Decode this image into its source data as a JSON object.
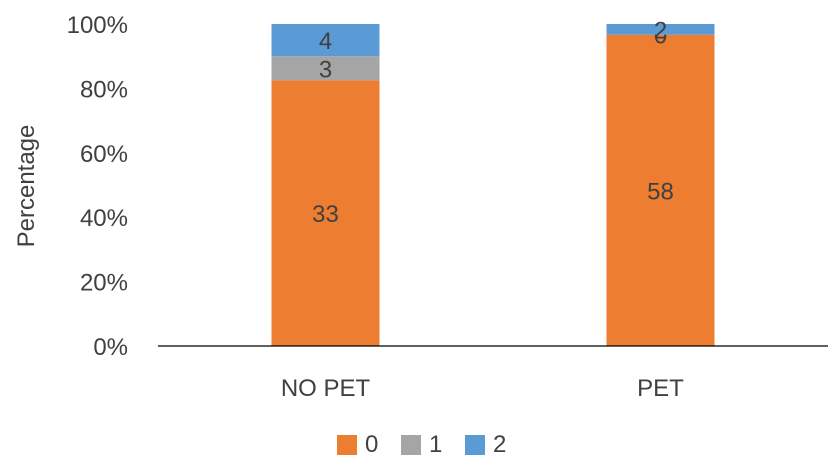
{
  "chart_data": {
    "type": "bar",
    "stacked": true,
    "percent": true,
    "categories": [
      "NO PET",
      "PET"
    ],
    "series": [
      {
        "name": "0",
        "values": [
          33,
          58
        ],
        "color": "#ED7D31"
      },
      {
        "name": "1",
        "values": [
          3,
          0
        ],
        "color": "#A5A5A5"
      },
      {
        "name": "2",
        "values": [
          4,
          2
        ],
        "color": "#5B9BD5"
      }
    ],
    "ylabel": "Percentage",
    "xlabel": "",
    "ylim": [
      0,
      100
    ],
    "yticks": [
      "0%",
      "20%",
      "40%",
      "60%",
      "80%",
      "100%"
    ],
    "grid": false,
    "legend_position": "bottom"
  }
}
